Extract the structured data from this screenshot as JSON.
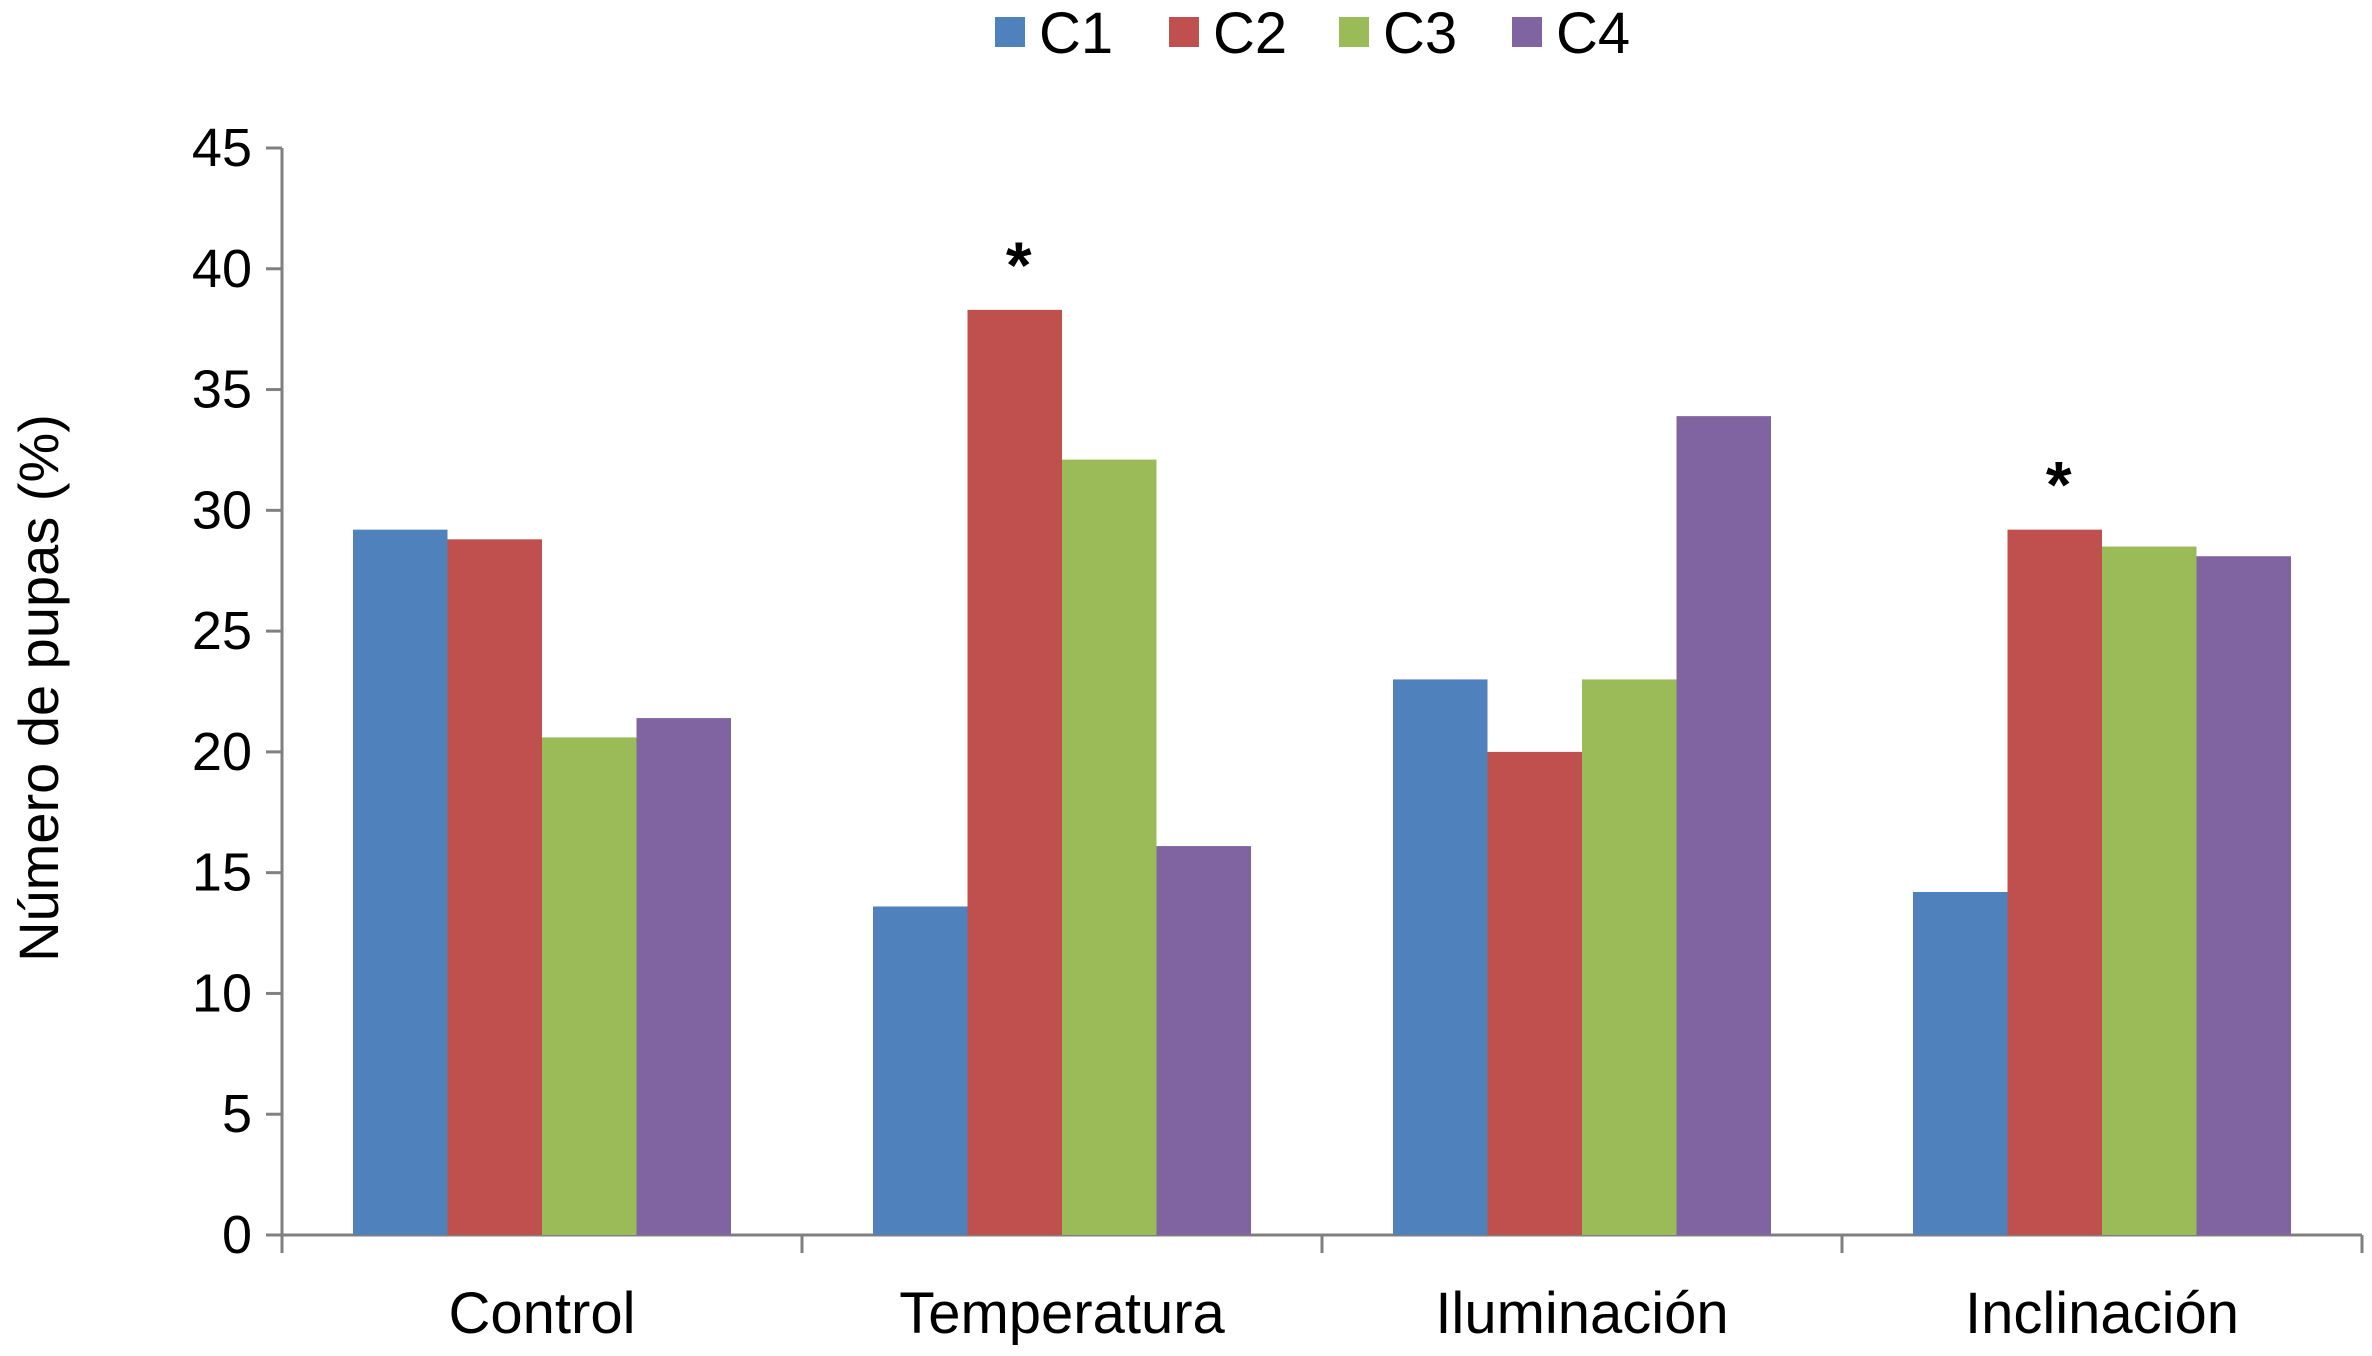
{
  "chart_data": {
    "type": "bar",
    "title": "",
    "xlabel": "",
    "ylabel": "Número de pupas (%)",
    "ylim": [
      0,
      45
    ],
    "yticks": [
      0,
      5,
      10,
      15,
      20,
      25,
      30,
      35,
      40,
      45
    ],
    "grid": false,
    "legend_position": "top",
    "categories": [
      "Control",
      "Temperatura",
      "Iluminación",
      "Inclinación"
    ],
    "series": [
      {
        "name": "C1",
        "color": "#4F81BD",
        "values": [
          29.2,
          13.6,
          23.0,
          14.2
        ]
      },
      {
        "name": "C2",
        "color": "#C0504D",
        "values": [
          28.8,
          38.3,
          20.0,
          29.2
        ]
      },
      {
        "name": "C3",
        "color": "#9BBB59",
        "values": [
          20.6,
          32.1,
          23.0,
          28.5
        ]
      },
      {
        "name": "C4",
        "color": "#8064A2",
        "values": [
          21.4,
          16.1,
          33.9,
          28.1
        ]
      }
    ],
    "annotations": [
      {
        "text": "*",
        "category": "Temperatura",
        "series": "C2"
      },
      {
        "text": "*",
        "category": "Inclinación",
        "series": "C2"
      }
    ]
  }
}
